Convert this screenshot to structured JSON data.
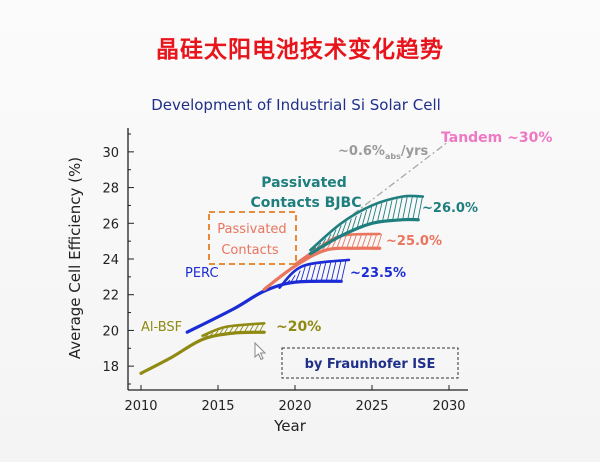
{
  "slide": {
    "title": "晶硅太阳电池技术变化趋势"
  },
  "chart_data": {
    "type": "line",
    "title": "Development of Industrial Si Solar Cell",
    "xlabel": "Year",
    "ylabel": "Average Cell Efficiency (%)",
    "xlim": [
      2009,
      2030
    ],
    "ylim": [
      17,
      31
    ],
    "xticks": [
      2010,
      2015,
      2020,
      2025,
      2030
    ],
    "yticks": [
      18,
      20,
      22,
      24,
      26,
      28,
      30
    ],
    "grid": false,
    "series": [
      {
        "name": "Al-BSF",
        "color": "#8f8a12",
        "points": [
          [
            2010,
            17.6
          ],
          [
            2012,
            18.5
          ],
          [
            2014,
            19.5
          ],
          [
            2016,
            19.85
          ],
          [
            2018,
            19.9
          ]
        ],
        "upper": [
          [
            2014,
            19.7
          ],
          [
            2015.5,
            20.2
          ],
          [
            2018,
            20.4
          ]
        ],
        "label": "~20%"
      },
      {
        "name": "PERC",
        "color": "#1b2bd6",
        "points": [
          [
            2013,
            19.9
          ],
          [
            2016,
            21.2
          ],
          [
            2018,
            22.2
          ],
          [
            2020,
            22.7
          ],
          [
            2023,
            22.75
          ]
        ],
        "upper": [
          [
            2019,
            22.4
          ],
          [
            2020.5,
            23.6
          ],
          [
            2023.5,
            23.95
          ]
        ],
        "label": "~23.5%"
      },
      {
        "name": "Passivated Contacts",
        "color": "#e9755e",
        "points": [
          [
            2018,
            22.3
          ],
          [
            2020,
            23.6
          ],
          [
            2022,
            24.5
          ],
          [
            2024,
            24.6
          ],
          [
            2025.5,
            24.6
          ]
        ],
        "upper": [
          [
            2020,
            23.7
          ],
          [
            2021.5,
            24.6
          ],
          [
            2023,
            25.3
          ],
          [
            2025.5,
            25.4
          ]
        ],
        "label": "~25.0%"
      },
      {
        "name": "Passivated Contacts BJBC",
        "color": "#1f7e7e",
        "points": [
          [
            2021,
            24.3
          ],
          [
            2023,
            25.3
          ],
          [
            2025,
            26.0
          ],
          [
            2027,
            26.2
          ],
          [
            2028,
            26.2
          ]
        ],
        "upper": [
          [
            2021,
            24.5
          ],
          [
            2023,
            26.0
          ],
          [
            2025,
            27.0
          ],
          [
            2027,
            27.5
          ],
          [
            2028.3,
            27.5
          ]
        ],
        "label": "~26.0%"
      }
    ],
    "trend": {
      "label_main": "~0.6%",
      "label_sub": "abs",
      "label_tail": "/yrs",
      "points": [
        [
          2023,
          26.0
        ],
        [
          2030,
          30.6
        ]
      ],
      "color": "#a8a8a8"
    },
    "annotations": {
      "tandem": "Tandem ~30%",
      "tandem_color": "#ef78c4",
      "source": "by Fraunhofer ISE",
      "passivated_box_line1": "Passivated",
      "passivated_box_line2": "Contacts",
      "bjbc_line1": "Passivated",
      "bjbc_line2": "Contacts BJBC"
    }
  }
}
